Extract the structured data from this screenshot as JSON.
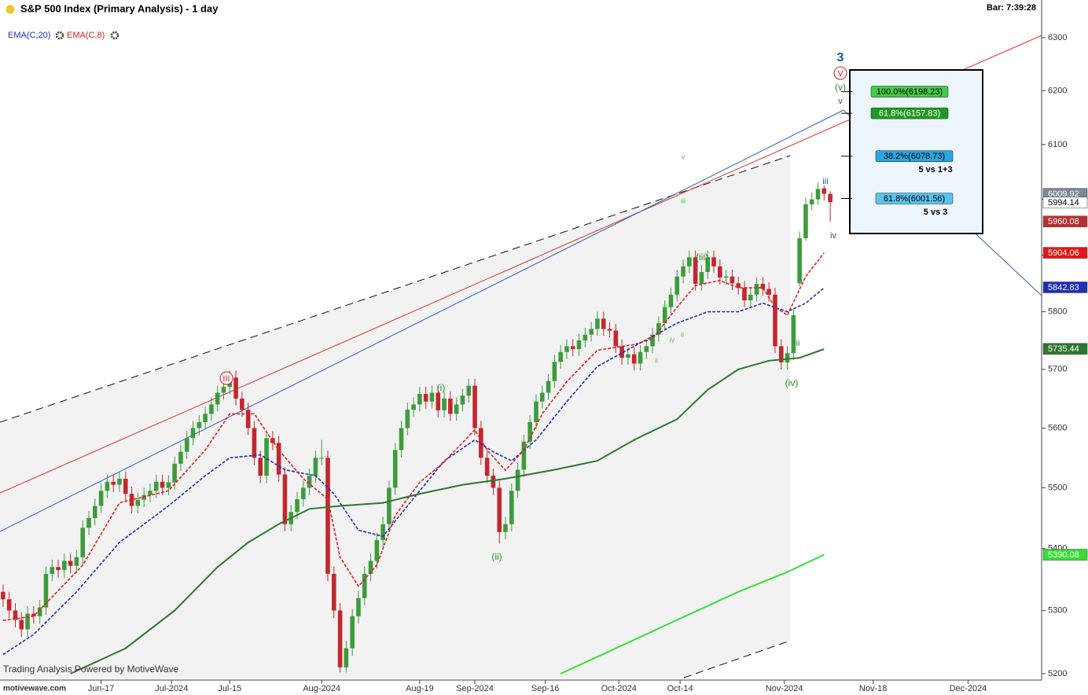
{
  "header": {
    "title": "S&P 500 Index (Primary Analysis) - 1 day",
    "bar_time": "Bar: 7:39:28",
    "footer": "Trading Analysis Powered by MotiveWave",
    "site": "motivewave.com"
  },
  "chart_data": {
    "type": "candlestick",
    "log_scale": true,
    "xlim": [
      -0.5,
      169.5
    ],
    "ylim": [
      5190,
      6372
    ],
    "yticks": [
      5200,
      5300,
      5400,
      5500,
      5600,
      5700,
      5800,
      5900,
      6000,
      6100,
      6200,
      6300
    ],
    "xticks": [
      {
        "value": 16,
        "label": "Jun-17"
      },
      {
        "value": 27.5,
        "label": "Jul-2024"
      },
      {
        "value": 37,
        "label": "Jul-15"
      },
      {
        "value": 52,
        "label": "Aug-2024"
      },
      {
        "value": 68,
        "label": "Aug-19"
      },
      {
        "value": 77,
        "label": "Sep-2024"
      },
      {
        "value": 88.5,
        "label": "Sep-16"
      },
      {
        "value": 100.5,
        "label": "Oct-2024"
      },
      {
        "value": 110.5,
        "label": "Oct-14"
      },
      {
        "value": 127.5,
        "label": "Nov-2024"
      },
      {
        "value": 142,
        "label": "Nov-18"
      },
      {
        "value": 157.5,
        "label": "Dec-2024"
      }
    ],
    "up_color": "#3c9b3c",
    "down_color": "#c3272d",
    "open": [
      5330,
      5318,
      5300,
      5285,
      5270,
      5295,
      5291,
      5305,
      5359,
      5370,
      5365,
      5380,
      5372,
      5386,
      5434,
      5450,
      5470,
      5495,
      5510,
      5505,
      5515,
      5490,
      5470,
      5480,
      5488,
      5495,
      5510,
      5500,
      5509,
      5540,
      5560,
      5583,
      5600,
      5610,
      5624,
      5640,
      5660,
      5670,
      5686,
      5650,
      5631,
      5600,
      5550,
      5520,
      5583,
      5575,
      5522,
      5440,
      5460,
      5481,
      5500,
      5520,
      5550,
      5550,
      5359,
      5300,
      5210,
      5240,
      5291,
      5320,
      5359,
      5380,
      5414,
      5440,
      5500,
      5563,
      5600,
      5631,
      5640,
      5658,
      5645,
      5660,
      5630,
      5650,
      5624,
      5640,
      5655,
      5672,
      5600,
      5550,
      5520,
      5500,
      5427,
      5440,
      5495,
      5530,
      5577,
      5610,
      5645,
      5660,
      5680,
      5713,
      5730,
      5740,
      5735,
      5750,
      5760,
      5770,
      5788,
      5770,
      5767,
      5740,
      5720,
      5726,
      5710,
      5730,
      5740,
      5760,
      5780,
      5808,
      5830,
      5862,
      5880,
      5896,
      5849,
      5870,
      5896,
      5880,
      5860,
      5862,
      5850,
      5842,
      5820,
      5830,
      5849,
      5840,
      5830,
      5740,
      5712,
      5728,
      5850,
      5930,
      5991,
      6000,
      6020,
      6010
    ],
    "high": [
      5342,
      5330,
      5312,
      5297,
      5307,
      5307,
      5317,
      5371,
      5382,
      5382,
      5392,
      5392,
      5398,
      5446,
      5462,
      5482,
      5507,
      5522,
      5522,
      5527,
      5527,
      5502,
      5492,
      5500,
      5507,
      5522,
      5522,
      5521,
      5552,
      5572,
      5595,
      5612,
      5622,
      5636,
      5652,
      5672,
      5682,
      5698,
      5698,
      5662,
      5643,
      5612,
      5562,
      5595,
      5595,
      5587,
      5534,
      5472,
      5493,
      5512,
      5532,
      5562,
      5580,
      5562,
      5371,
      5312,
      5252,
      5303,
      5332,
      5371,
      5392,
      5426,
      5452,
      5512,
      5575,
      5612,
      5643,
      5652,
      5670,
      5670,
      5672,
      5672,
      5662,
      5662,
      5652,
      5667,
      5684,
      5684,
      5612,
      5562,
      5532,
      5512,
      5452,
      5507,
      5542,
      5589,
      5622,
      5657,
      5672,
      5692,
      5725,
      5742,
      5752,
      5752,
      5762,
      5772,
      5782,
      5800,
      5800,
      5782,
      5779,
      5752,
      5738,
      5738,
      5742,
      5752,
      5772,
      5792,
      5820,
      5842,
      5874,
      5892,
      5908,
      5908,
      5882,
      5908,
      5908,
      5892,
      5874,
      5874,
      5862,
      5854,
      5842,
      5861,
      5861,
      5852,
      5842,
      5752,
      5740,
      5806,
      5942,
      6003,
      6012,
      6031,
      6025,
      6015
    ],
    "low": [
      5306,
      5288,
      5273,
      5258,
      5258,
      5279,
      5279,
      5293,
      5347,
      5353,
      5353,
      5360,
      5360,
      5374,
      5422,
      5438,
      5458,
      5483,
      5493,
      5493,
      5478,
      5458,
      5458,
      5468,
      5476,
      5483,
      5488,
      5488,
      5497,
      5528,
      5548,
      5571,
      5588,
      5598,
      5612,
      5628,
      5648,
      5658,
      5638,
      5619,
      5588,
      5538,
      5508,
      5508,
      5563,
      5510,
      5428,
      5428,
      5448,
      5469,
      5488,
      5508,
      5538,
      5347,
      5288,
      5202,
      5202,
      5228,
      5279,
      5308,
      5347,
      5368,
      5402,
      5428,
      5488,
      5551,
      5588,
      5619,
      5628,
      5633,
      5633,
      5618,
      5618,
      5612,
      5612,
      5628,
      5643,
      5588,
      5538,
      5508,
      5488,
      5408,
      5415,
      5428,
      5483,
      5518,
      5565,
      5598,
      5633,
      5648,
      5668,
      5701,
      5718,
      5723,
      5723,
      5738,
      5748,
      5758,
      5758,
      5755,
      5728,
      5708,
      5708,
      5698,
      5698,
      5718,
      5728,
      5748,
      5768,
      5796,
      5818,
      5850,
      5868,
      5837,
      5837,
      5858,
      5868,
      5848,
      5848,
      5838,
      5830,
      5808,
      5808,
      5818,
      5828,
      5818,
      5728,
      5700,
      5700,
      5716,
      5845,
      5925,
      5980,
      5990,
      5998,
      5960
    ],
    "close": [
      5318,
      5300,
      5285,
      5270,
      5295,
      5291,
      5305,
      5359,
      5370,
      5365,
      5380,
      5372,
      5386,
      5434,
      5450,
      5470,
      5495,
      5510,
      5505,
      5515,
      5490,
      5470,
      5480,
      5488,
      5495,
      5510,
      5500,
      5509,
      5540,
      5560,
      5583,
      5600,
      5610,
      5624,
      5640,
      5660,
      5670,
      5686,
      5650,
      5631,
      5600,
      5550,
      5520,
      5583,
      5575,
      5522,
      5440,
      5460,
      5481,
      5500,
      5520,
      5550,
      5550,
      5359,
      5300,
      5210,
      5240,
      5291,
      5320,
      5359,
      5380,
      5414,
      5440,
      5500,
      5563,
      5600,
      5631,
      5640,
      5658,
      5645,
      5660,
      5630,
      5650,
      5624,
      5640,
      5655,
      5672,
      5600,
      5550,
      5520,
      5500,
      5427,
      5440,
      5495,
      5530,
      5577,
      5610,
      5645,
      5660,
      5680,
      5713,
      5730,
      5740,
      5735,
      5750,
      5760,
      5770,
      5788,
      5770,
      5767,
      5740,
      5720,
      5726,
      5710,
      5730,
      5740,
      5760,
      5780,
      5808,
      5830,
      5862,
      5880,
      5896,
      5849,
      5870,
      5896,
      5880,
      5860,
      5862,
      5850,
      5842,
      5820,
      5830,
      5849,
      5840,
      5830,
      5740,
      5712,
      5728,
      5794,
      5930,
      5991,
      6000,
      6019,
      6010,
      5995
    ],
    "lines": [
      {
        "name": "EMA(C,20)",
        "color": "#1f2fb8",
        "dashed": true,
        "x": [
          0,
          5,
          12,
          19,
          27,
          33,
          37,
          42,
          46,
          51,
          54,
          58,
          62,
          66,
          72,
          77,
          80,
          83,
          87,
          92,
          97,
          103,
          110,
          115,
          120,
          124,
          128,
          131,
          134
        ],
        "values": [
          5230,
          5262,
          5330,
          5410,
          5470,
          5520,
          5550,
          5555,
          5530,
          5520,
          5490,
          5430,
          5420,
          5470,
          5545,
          5580,
          5560,
          5545,
          5580,
          5645,
          5705,
          5740,
          5780,
          5800,
          5800,
          5815,
          5800,
          5815,
          5842
        ]
      },
      {
        "name": "EMA(C,8)",
        "color": "#e02020",
        "dashed": true,
        "x": [
          0,
          5,
          13,
          19,
          27,
          33,
          37,
          41,
          45,
          49,
          53,
          55,
          58,
          61,
          64,
          68,
          72,
          77,
          79,
          82,
          85,
          88,
          92,
          97,
          103,
          106,
          110,
          113,
          117,
          120,
          124,
          126,
          128,
          131,
          134
        ],
        "values": [
          5284,
          5291,
          5373,
          5475,
          5495,
          5563,
          5624,
          5624,
          5563,
          5515,
          5481,
          5386,
          5339,
          5373,
          5454,
          5509,
          5543,
          5597,
          5563,
          5529,
          5563,
          5624,
          5679,
          5733,
          5743,
          5753,
          5808,
          5846,
          5855,
          5842,
          5842,
          5808,
          5794,
          5862,
          5904
        ]
      },
      {
        "color": "#2e772e",
        "dashed": false,
        "x": [
          11,
          20,
          28,
          35,
          40,
          45,
          50,
          55,
          62,
          68,
          75,
          82,
          90,
          97,
          103,
          110,
          115,
          120,
          125,
          130,
          134
        ],
        "values": [
          5200,
          5240,
          5300,
          5370,
          5410,
          5440,
          5465,
          5470,
          5475,
          5490,
          5505,
          5515,
          5530,
          5545,
          5580,
          5615,
          5665,
          5700,
          5715,
          5720,
          5735
        ]
      },
      {
        "color": "#33e033",
        "dashed": false,
        "x": [
          91,
          100,
          110,
          120,
          128,
          134
        ],
        "values": [
          5200,
          5240,
          5285,
          5330,
          5362,
          5390
        ]
      }
    ],
    "price_markers": [
      {
        "value": 6009.92,
        "color": "#7d8796"
      },
      {
        "value": 5994.14,
        "color": "#ffffff"
      },
      {
        "value": 5960.08,
        "color": "#b83030"
      },
      {
        "value": 5904.06,
        "color": "#e01818"
      },
      {
        "value": 5842.83,
        "color": "#1f2fb8"
      },
      {
        "value": 5735.44,
        "color": "#2e772e"
      },
      {
        "value": 5390.08,
        "color": "#33e033"
      }
    ],
    "fib_levels": [
      {
        "label": "100.0%(6198.23)",
        "value": 6198.23,
        "color": "#44cc44"
      },
      {
        "label": "61.8%(6157.83)",
        "value": 6157.83,
        "color": "#1f9a1f"
      },
      {
        "label": "38.2%(6078.73)",
        "value": 6078.73,
        "color": "#2aa6e0"
      },
      {
        "label": "61.8%(6001.56)",
        "value": 6001.56,
        "color": "#5bc2ee"
      }
    ],
    "fib_notes": [
      "5 vs 1+3",
      "5 vs 3"
    ],
    "annotations": [
      "3",
      "V",
      "(v)",
      "v",
      "iii",
      "iv",
      "(iv)",
      "ii",
      "(iii)",
      "(i)",
      "(ii)",
      "III",
      "v",
      "iii",
      "iii",
      "ii",
      "iv",
      "ii"
    ]
  }
}
